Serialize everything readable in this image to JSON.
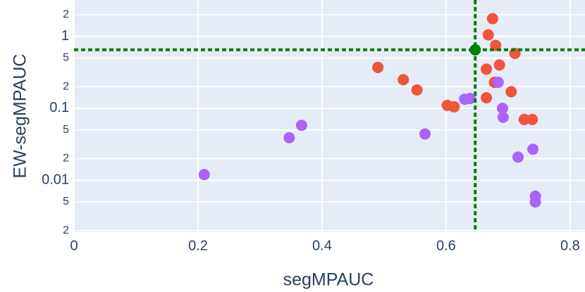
{
  "chart_data": {
    "type": "scatter",
    "x_label": "segMPAUC",
    "y_label": "EW-segMPAUC",
    "yscale": "log",
    "grid": true,
    "xlim": [
      0,
      0.824
    ],
    "ylim": [
      0.0019,
      3.2
    ],
    "xticks": [
      0,
      0.2,
      0.4,
      0.6,
      0.8
    ],
    "yticks": [
      2,
      1,
      {
        "value": 0.5,
        "label": "5"
      },
      {
        "value": 0.2,
        "label": "2"
      },
      0.1,
      {
        "value": 0.05,
        "label": "5"
      },
      {
        "value": 0.02,
        "label": "2"
      },
      0.01,
      {
        "value": 0.005,
        "label": "5"
      },
      {
        "value": 0.002,
        "label": "2"
      }
    ],
    "series": [
      {
        "color": "#ef553b",
        "x": [
          0.675,
          0.668,
          0.68,
          0.711,
          0.49,
          0.686,
          0.665,
          0.531,
          0.678,
          0.553,
          0.705,
          0.665,
          0.602,
          0.613,
          0.726,
          0.739
        ],
        "values": [
          1.76,
          1.05,
          0.75,
          0.58,
          0.37,
          0.4,
          0.35,
          0.25,
          0.23,
          0.18,
          0.17,
          0.14,
          0.11,
          0.105,
          0.07,
          0.07
        ]
      },
      {
        "color": "#ab63fa",
        "x": [
          0.684,
          0.63,
          0.639,
          0.691,
          0.692,
          0.566,
          0.367,
          0.347,
          0.74,
          0.716,
          0.21,
          0.744,
          0.744
        ],
        "values": [
          0.23,
          0.134,
          0.137,
          0.1,
          0.075,
          0.044,
          0.058,
          0.039,
          0.027,
          0.021,
          0.012,
          0.006,
          0.005
        ]
      }
    ],
    "highlight": {
      "x": 0.647,
      "y": 0.65,
      "color": "#008000"
    }
  }
}
